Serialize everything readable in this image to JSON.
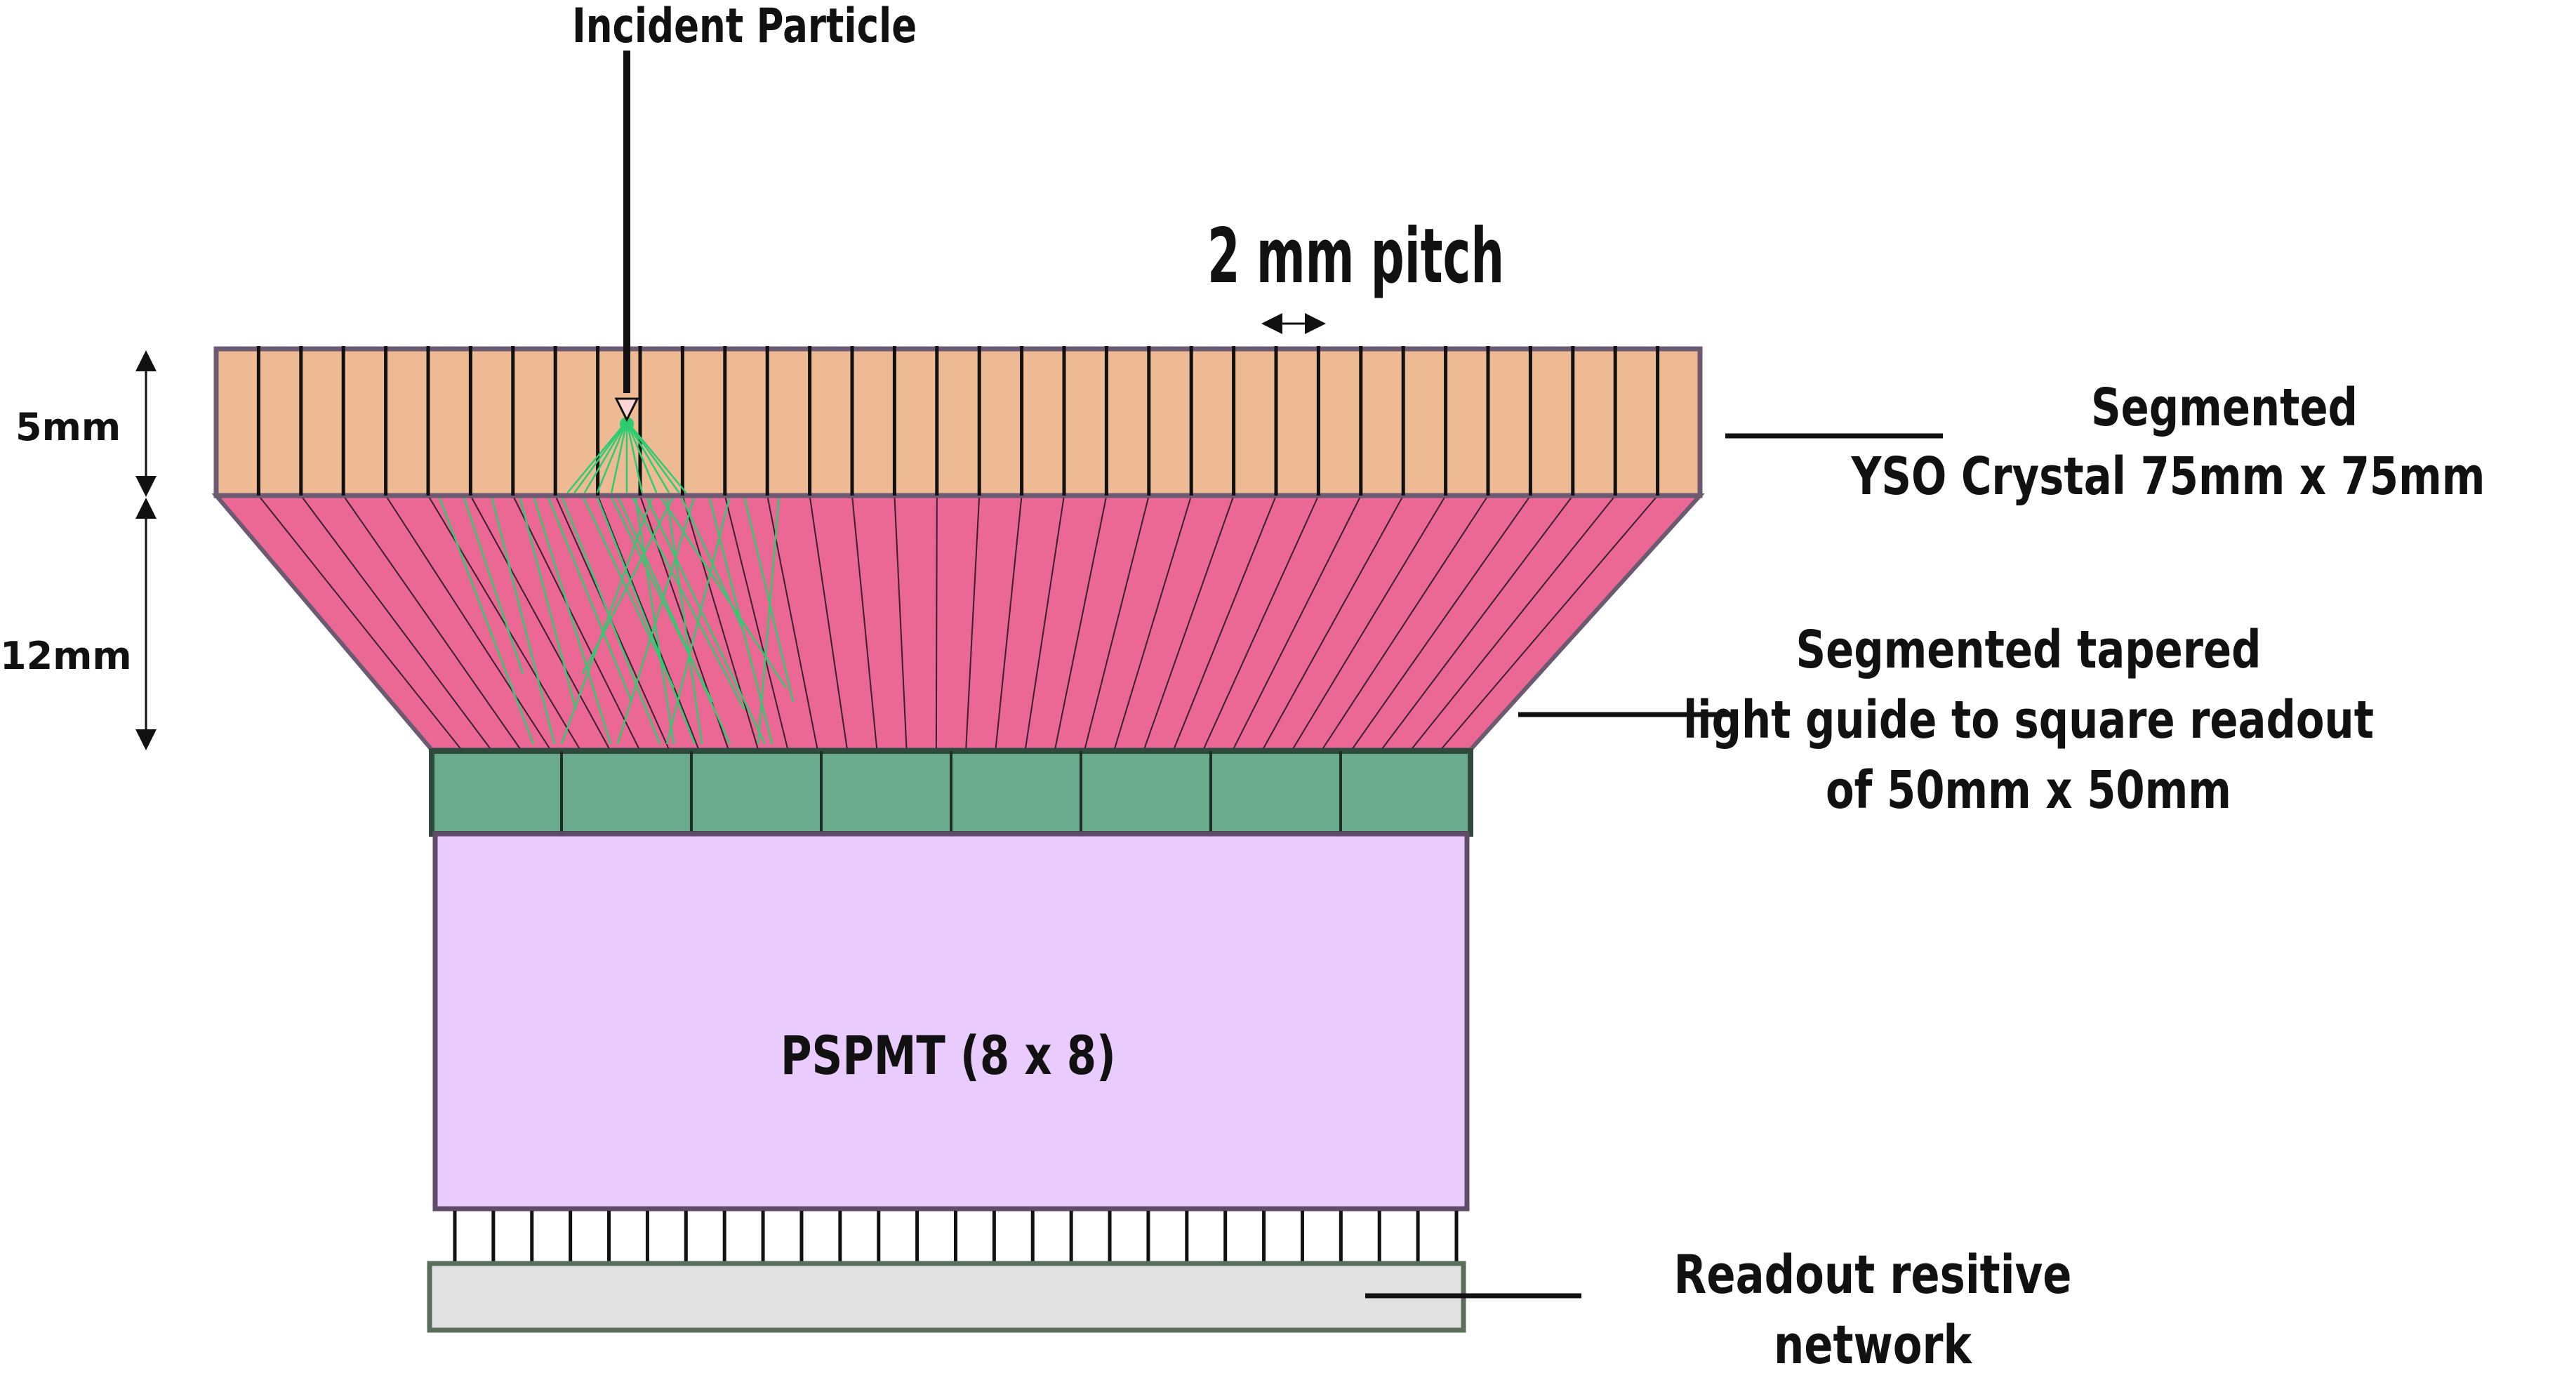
{
  "labels": {
    "incident": "Incident Particle",
    "pitch": "2 mm pitch",
    "dim_5mm": "5mm",
    "dim_12mm": "12mm",
    "crystal_line1": "Segmented",
    "crystal_line2": "YSO Crystal  75mm x 75mm",
    "guide_line1": "Segmented tapered",
    "guide_line2": "light guide to square readout",
    "guide_line3": "of 50mm x 50mm",
    "pspmt": "PSPMT  (8 x 8)",
    "readout_line1": "Readout resitive",
    "readout_line2": "network"
  },
  "colors": {
    "crystal_fill": "#EDBA94",
    "crystal_border": "#6b5a72",
    "guide_fill": "#EB6894",
    "window_fill": "#6AAA8D",
    "pspmt_fill": "#E9CCFD",
    "readout_fill": "#E2E2E2",
    "readout_border": "#5a6e5a",
    "light_rays": "#2ecc71",
    "text": "#111111"
  },
  "counts": {
    "crystal_segments": 35,
    "window_cells": 8,
    "pins": 27
  }
}
